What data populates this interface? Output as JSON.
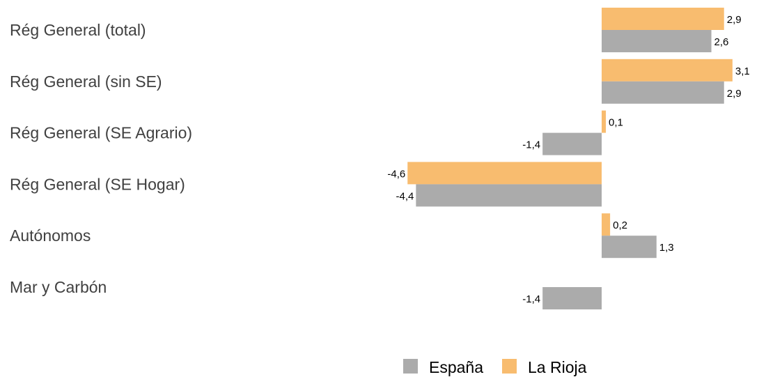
{
  "chart_data": {
    "type": "bar",
    "orientation": "horizontal",
    "categories": [
      "Rég General (total)",
      "Rég General (sin SE)",
      "Rég General (SE Agrario)",
      "Rég General (SE Hogar)",
      "Autónomos",
      "Mar y Carbón"
    ],
    "series": [
      {
        "name": "La Rioja",
        "color": "#F8BC6F",
        "values": [
          2.9,
          3.1,
          0.1,
          -4.6,
          0.2,
          null
        ],
        "labels": [
          "2,9",
          "3,1",
          "0,1",
          "-4,6",
          "0,2",
          ""
        ]
      },
      {
        "name": "España",
        "color": "#ABABAB",
        "values": [
          2.6,
          2.9,
          -1.4,
          -4.4,
          1.3,
          -1.4
        ],
        "labels": [
          "2,6",
          "2,9",
          "-1,4",
          "-4,4",
          "1,3",
          "-1,4"
        ]
      }
    ],
    "legend": {
      "position": "bottom",
      "order": [
        "España",
        "La Rioja"
      ]
    },
    "title": "",
    "xlabel": "",
    "ylabel": "",
    "grid": false
  }
}
